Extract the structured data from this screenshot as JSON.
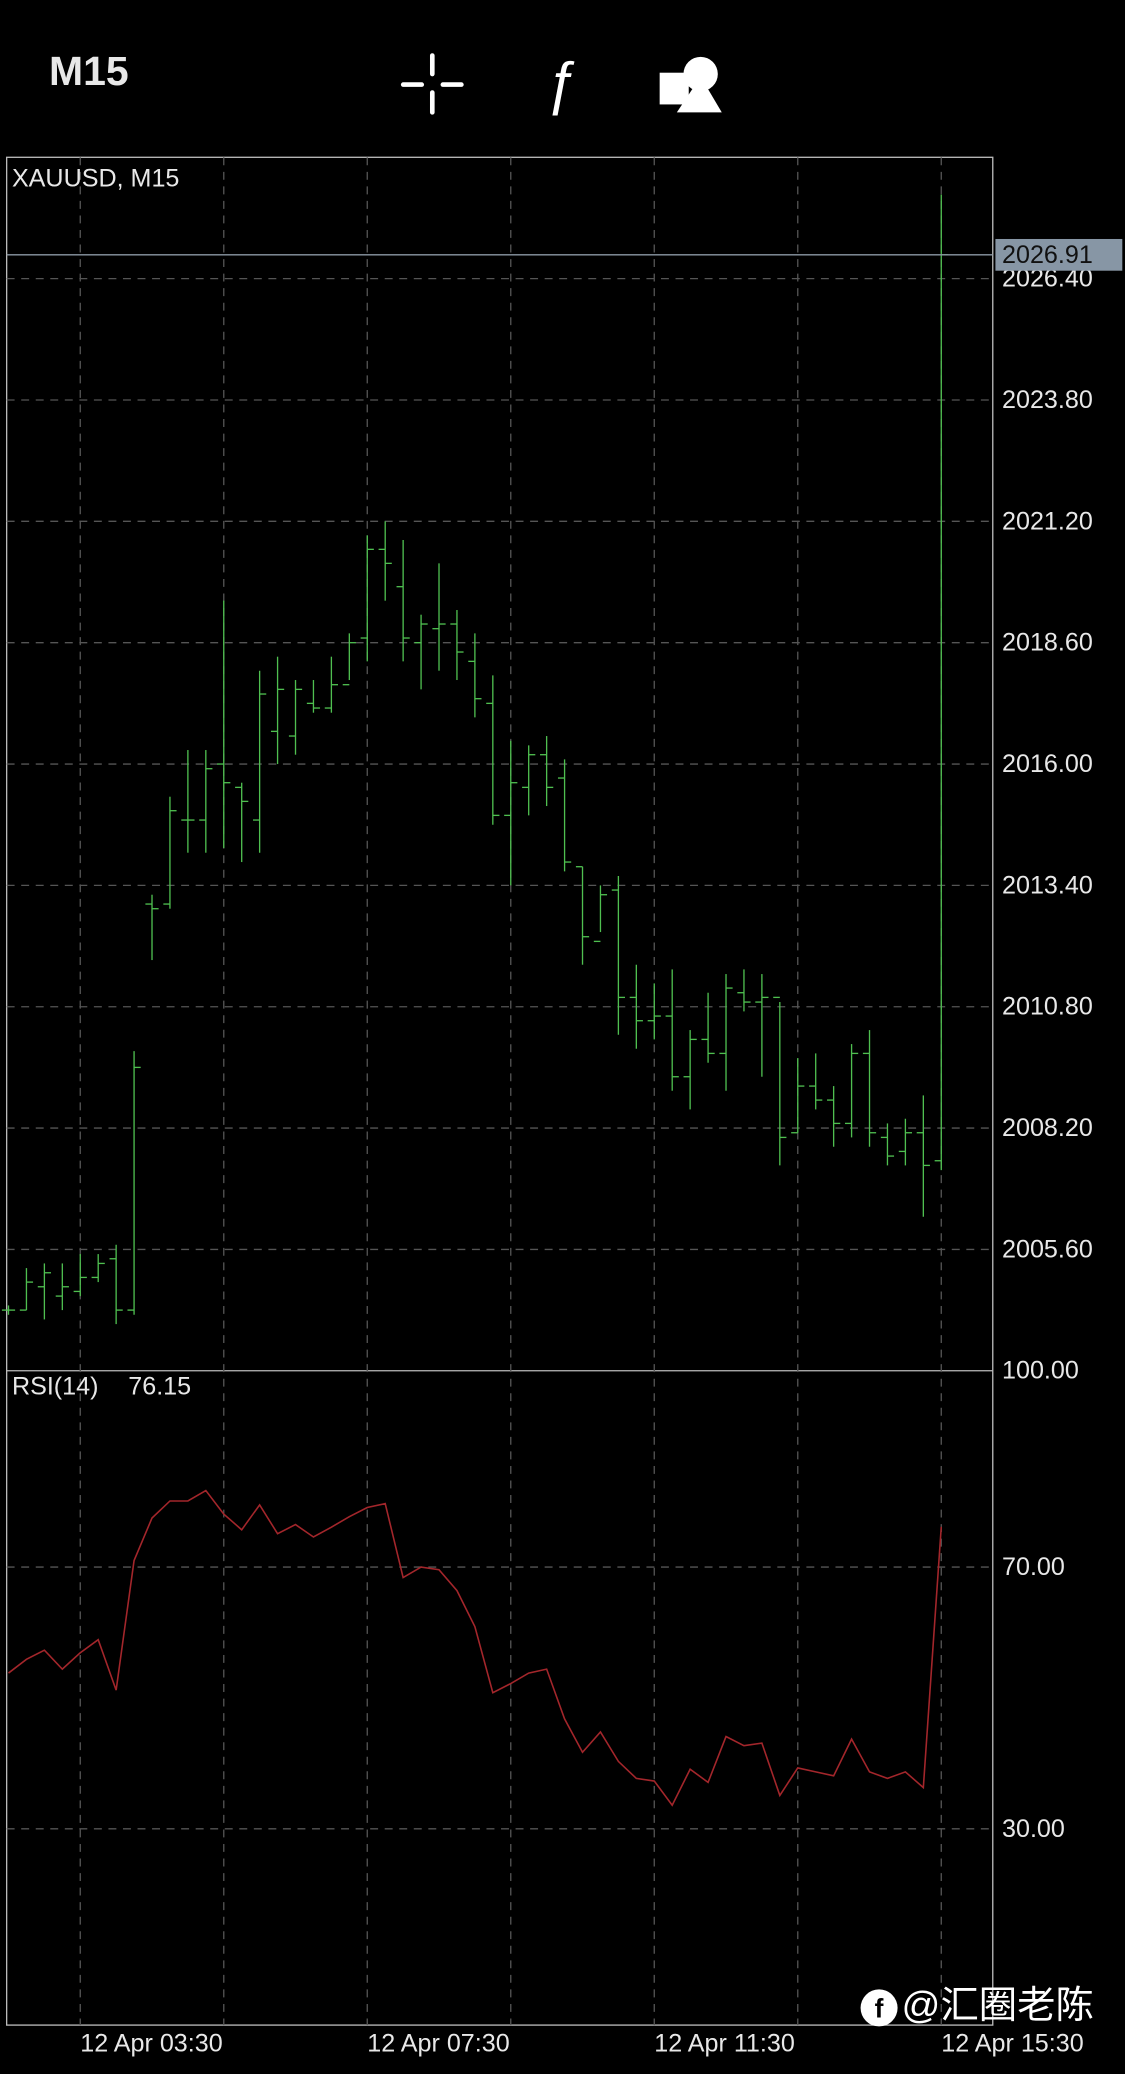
{
  "header": {
    "timeframe": "M15"
  },
  "watermark": "@汇圈老陈",
  "chart_data": [
    {
      "type": "ohlc",
      "title": "XAUUSD, M15",
      "color": "#4fbf50",
      "grid": true,
      "categories": [
        null,
        null,
        null,
        null,
        "12 Apr 03:30",
        null,
        null,
        null,
        null,
        null,
        null,
        null,
        null,
        null,
        null,
        null,
        null,
        null,
        null,
        null,
        "12 Apr 07:30",
        null,
        null,
        null,
        null,
        null,
        null,
        null,
        null,
        null,
        null,
        null,
        null,
        null,
        null,
        null,
        "12 Apr 11:30",
        null,
        null,
        null,
        null,
        null,
        null,
        null,
        null,
        null,
        null,
        null,
        null,
        null,
        null,
        null,
        "12 Apr 15:30"
      ],
      "open": [
        2004.3,
        2004.3,
        2004.8,
        2004.6,
        2004.7,
        2005.0,
        2005.4,
        2004.3,
        2013.0,
        2013.0,
        2014.8,
        2014.8,
        2016.0,
        2015.5,
        2014.8,
        2016.7,
        2016.6,
        2017.3,
        2017.2,
        2017.7,
        2018.7,
        2020.6,
        2019.8,
        2018.6,
        2018.9,
        2019.0,
        2018.2,
        2017.3,
        2014.9,
        2015.5,
        2016.2,
        2015.7,
        2013.8,
        2012.2,
        2013.3,
        2011.0,
        2010.5,
        2010.6,
        2009.3,
        2010.1,
        2009.8,
        2011.1,
        2010.9,
        2011.0,
        2008.1,
        2009.1,
        2008.8,
        2008.3,
        2009.8,
        2008.0,
        2007.7,
        2008.1,
        2007.5
      ],
      "high": [
        2004.4,
        2005.2,
        2005.3,
        2005.3,
        2005.5,
        2005.5,
        2005.7,
        2009.85,
        2013.2,
        2015.3,
        2016.3,
        2016.3,
        2019.5,
        2015.6,
        2018.0,
        2018.3,
        2017.8,
        2017.8,
        2018.3,
        2018.8,
        2020.9,
        2021.2,
        2020.8,
        2019.2,
        2020.3,
        2019.3,
        2018.8,
        2017.9,
        2016.5,
        2016.4,
        2016.6,
        2016.1,
        2013.8,
        2013.4,
        2013.6,
        2011.7,
        2011.3,
        2011.6,
        2010.3,
        2011.1,
        2011.5,
        2011.6,
        2011.5,
        2010.9,
        2009.7,
        2009.8,
        2009.1,
        2010.0,
        2010.3,
        2008.3,
        2008.4,
        2008.9,
        2028.2
      ],
      "low": [
        2004.2,
        2004.3,
        2004.1,
        2004.3,
        2004.6,
        2004.9,
        2004.0,
        2004.2,
        2011.8,
        2012.9,
        2014.1,
        2014.1,
        2014.2,
        2013.9,
        2014.1,
        2016.0,
        2016.2,
        2017.1,
        2017.1,
        2017.8,
        2018.2,
        2019.5,
        2018.2,
        2017.6,
        2018.0,
        2017.8,
        2017.0,
        2014.7,
        2013.4,
        2014.9,
        2015.1,
        2013.7,
        2011.7,
        2012.4,
        2010.2,
        2009.9,
        2010.1,
        2009.0,
        2008.6,
        2009.6,
        2009.0,
        2010.7,
        2009.3,
        2007.4,
        2008.1,
        2008.6,
        2007.8,
        2008.0,
        2007.8,
        2007.4,
        2007.4,
        2006.3,
        2007.3
      ],
      "close": [
        2004.3,
        2004.9,
        2005.1,
        2004.8,
        2005.0,
        2005.3,
        2004.3,
        2009.5,
        2012.9,
        2015.0,
        2014.8,
        2015.9,
        2015.6,
        2015.2,
        2017.5,
        2017.6,
        2017.6,
        2017.2,
        2017.7,
        2018.6,
        2020.6,
        2020.3,
        2018.7,
        2019.0,
        2019.0,
        2018.4,
        2017.4,
        2014.9,
        2015.6,
        2016.2,
        2015.5,
        2013.9,
        2012.3,
        2013.2,
        2011.0,
        2010.5,
        2010.6,
        2009.3,
        2010.1,
        2009.8,
        2011.2,
        2010.9,
        2011.0,
        2008.0,
        2009.1,
        2008.8,
        2008.3,
        2009.8,
        2008.1,
        2007.6,
        2008.1,
        2007.4,
        2026.91
      ],
      "ylim": [
        2003,
        2029
      ],
      "yticks": [
        {
          "value": 2005.6,
          "label": "2005.60"
        },
        {
          "value": 2008.2,
          "label": "2008.20"
        },
        {
          "value": 2010.8,
          "label": "2010.80"
        },
        {
          "value": 2013.4,
          "label": "2013.40"
        },
        {
          "value": 2016,
          "label": "2016.00"
        },
        {
          "value": 2018.6,
          "label": "2018.60"
        },
        {
          "value": 2021.2,
          "label": "2021.20"
        },
        {
          "value": 2023.8,
          "label": "2023.80"
        },
        {
          "value": 2026.4,
          "label": "2026.40"
        }
      ]
    },
    {
      "type": "line",
      "title": "RSI(14)",
      "color": "#a3262b",
      "grid": true,
      "values": [
        53.8,
        55.9,
        57.3,
        54.4,
        56.9,
        58.9,
        51.2,
        71.0,
        77.5,
        80.1,
        80.1,
        81.7,
        78.1,
        75.7,
        79.5,
        75.1,
        76.5,
        74.6,
        76.1,
        77.7,
        79.1,
        79.7,
        68.4,
        70.0,
        69.6,
        66.4,
        60.9,
        50.8,
        52.2,
        53.8,
        54.4,
        46.8,
        41.7,
        44.8,
        40.3,
        37.7,
        37.3,
        33.6,
        39.1,
        37.1,
        44.1,
        42.7,
        43.1,
        35.1,
        39.3,
        38.7,
        38.1,
        43.7,
        38.7,
        37.7,
        38.7,
        36.3,
        76.15
      ],
      "ylim": [
        0,
        100
      ],
      "yticks": [
        {
          "value": 30,
          "label": "30.00"
        },
        {
          "value": 70,
          "label": "70.00"
        },
        {
          "value": 100,
          "label": "100.00"
        }
      ]
    }
  ]
}
